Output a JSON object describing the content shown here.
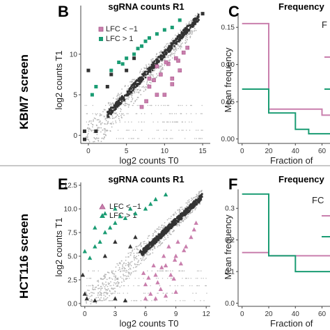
{
  "colors": {
    "pink": "#c97fad",
    "pink_dark": "#a9578b",
    "green": "#1a9c73",
    "dark": "#333333",
    "gray": "#b5b5b5",
    "divider": "#c8c8c8"
  },
  "rows": [
    {
      "label": "KBM7 screen"
    },
    {
      "label": "HCT116 screen"
    }
  ],
  "chart_data": [
    {
      "panel": "B",
      "type": "scatter",
      "title": "sgRNA counts R1",
      "xlabel": "log2 counts T0",
      "ylabel": "log2 counts T1",
      "xlim": [
        -1,
        16
      ],
      "ylim": [
        -1,
        16
      ],
      "xticks": [
        0,
        5,
        10,
        15
      ],
      "yticks": [
        0,
        5,
        10
      ],
      "legend": {
        "position": "top-left",
        "marker": "square",
        "entries": [
          {
            "label": "LFC < −1",
            "color": "pink"
          },
          {
            "label": "LFC > 1",
            "color": "green"
          }
        ]
      },
      "diag_band": {
        "x0": 2.5,
        "x1": 14.5,
        "y0": 2.5,
        "y1": 14.6
      },
      "series": [
        {
          "name": "LFC < −1",
          "color": "pink",
          "marker": "square",
          "points": [
            [
              12,
              8
            ],
            [
              11,
              6.3
            ],
            [
              10,
              5
            ],
            [
              9,
              5
            ],
            [
              8,
              6
            ],
            [
              7,
              3.5
            ],
            [
              8,
              7
            ],
            [
              11,
              7
            ],
            [
              9.5,
              7.5
            ],
            [
              10.5,
              8.8
            ],
            [
              11.5,
              9.5
            ],
            [
              12.5,
              10.2
            ],
            [
              13,
              10.8
            ],
            [
              9,
              8.5
            ],
            [
              10.2,
              9
            ],
            [
              11.8,
              9.2
            ],
            [
              8.6,
              6.8
            ],
            [
              7.6,
              4.2
            ]
          ]
        },
        {
          "name": "LFC > 1",
          "color": "green",
          "marker": "square",
          "points": [
            [
              0.5,
              5
            ],
            [
              1,
              6
            ],
            [
              4,
              9
            ],
            [
              5,
              9.5
            ],
            [
              6,
              10
            ],
            [
              7,
              11
            ],
            [
              8,
              12
            ],
            [
              10,
              13
            ],
            [
              9,
              12.5
            ],
            [
              3,
              8
            ],
            [
              11,
              13.3
            ],
            [
              12,
              14.2
            ],
            [
              6.5,
              10.7
            ],
            [
              7.5,
              11.6
            ],
            [
              4.5,
              8.8
            ]
          ]
        },
        {
          "name": "",
          "color": "dark",
          "marker": "square",
          "points": [
            [
              15,
              15
            ],
            [
              -0.5,
              0.5
            ],
            [
              -0.5,
              -0.5
            ],
            [
              0,
              8
            ],
            [
              1,
              0.5
            ],
            [
              6,
              9.5
            ],
            [
              5,
              8
            ],
            [
              3,
              7.5
            ],
            [
              2.5,
              6
            ]
          ]
        }
      ]
    },
    {
      "panel": "C",
      "type": "line",
      "title": "Frequency",
      "xlabel": "Fraction of",
      "ylabel": "Mean frequency",
      "xlim": [
        -3,
        66
      ],
      "ylim": [
        -0.006,
        0.168
      ],
      "xticks": [
        0,
        20,
        40,
        60
      ],
      "xtick_labels": [
        "0",
        "20",
        "40",
        "60"
      ],
      "yticks": [
        0.0,
        0.05,
        0.1,
        0.15
      ],
      "ytick_labels": [
        "0.00",
        "0.05",
        "0.10",
        "0.15"
      ],
      "legend_fragment": "F",
      "series": [
        {
          "name": "",
          "color": "pink",
          "step": true,
          "points": [
            [
              0,
              0.155
            ],
            [
              20,
              0.155
            ],
            [
              20,
              0.04
            ],
            [
              60,
              0.04
            ],
            [
              60,
              0.032
            ],
            [
              66,
              0.032
            ]
          ]
        },
        {
          "name": "",
          "color": "green",
          "step": true,
          "points": [
            [
              0,
              0.067
            ],
            [
              20,
              0.067
            ],
            [
              20,
              0.035
            ],
            [
              40,
              0.035
            ],
            [
              40,
              0.013
            ],
            [
              50,
              0.013
            ],
            [
              50,
              0.007
            ],
            [
              66,
              0.007
            ]
          ]
        }
      ]
    },
    {
      "panel": "E",
      "type": "scatter",
      "title": "sgRNA counts R1",
      "xlabel": "log2 counts T0",
      "ylabel": "log2 counts T1",
      "xlim": [
        -0.4,
        12.4
      ],
      "ylim": [
        -0.3,
        12.8
      ],
      "xticks": [
        0,
        3,
        6,
        9,
        12
      ],
      "yticks": [
        0.0,
        2.5,
        5.0,
        7.5,
        10.0,
        12.5
      ],
      "ytick_labels": [
        "0.0",
        "2.5",
        "5.0",
        "7.5",
        "10.0",
        "12.5"
      ],
      "legend": {
        "position": "top-left",
        "marker": "triangle",
        "entries": [
          {
            "label": "LFC < −1",
            "color": "pink"
          },
          {
            "label": "LFC > 1",
            "color": "green"
          }
        ]
      },
      "diag_band": {
        "x0": 5.6,
        "x1": 11.6,
        "y0": 5.3,
        "y1": 11.3
      },
      "series": [
        {
          "name": "LFC < −1",
          "color": "pink",
          "marker": "triangle",
          "points": [
            [
              6,
              2
            ],
            [
              7,
              3
            ],
            [
              8,
              4
            ],
            [
              9,
              5
            ],
            [
              10,
              6
            ],
            [
              6.5,
              1
            ],
            [
              7.5,
              1.5
            ],
            [
              8.5,
              3
            ],
            [
              9.5,
              4.2
            ],
            [
              10.5,
              7
            ],
            [
              6,
              0.5
            ],
            [
              7,
              0.5
            ],
            [
              8,
              0.8
            ],
            [
              9,
              1.2
            ],
            [
              7.2,
              2.2
            ],
            [
              8.8,
              2.6
            ],
            [
              9.8,
              5.6
            ],
            [
              10.8,
              7.8
            ],
            [
              6.8,
              4
            ],
            [
              7.8,
              5
            ],
            [
              8.3,
              6
            ],
            [
              9.2,
              6.5
            ],
            [
              5.8,
              3.2
            ],
            [
              6.3,
              2.7
            ],
            [
              11,
              8.5
            ],
            [
              7.6,
              3.8
            ],
            [
              8.9,
              4.6
            ]
          ]
        },
        {
          "name": "LFC > 1",
          "color": "green",
          "marker": "triangle",
          "points": [
            [
              0,
              5.5
            ],
            [
              1,
              6
            ],
            [
              2,
              7.5
            ],
            [
              3,
              8.5
            ],
            [
              4,
              9
            ],
            [
              5,
              9.5
            ],
            [
              2.5,
              8
            ],
            [
              1.5,
              6.5
            ],
            [
              3.5,
              9.2
            ],
            [
              4.5,
              10
            ],
            [
              0.5,
              4.8
            ],
            [
              2,
              9.5
            ],
            [
              6,
              10
            ],
            [
              6.5,
              10.5
            ],
            [
              7,
              11
            ],
            [
              8,
              11.5
            ],
            [
              3,
              10
            ],
            [
              1,
              8
            ]
          ]
        },
        {
          "name": "",
          "color": "dark",
          "marker": "triangle",
          "points": [
            [
              -0.2,
              3
            ],
            [
              0,
              1
            ],
            [
              0.2,
              0.5
            ],
            [
              1,
              0.3
            ],
            [
              3,
              0.5
            ],
            [
              4,
              0.3
            ],
            [
              2,
              5
            ],
            [
              3,
              6.5
            ],
            [
              4.5,
              6
            ],
            [
              5.5,
              5.5
            ],
            [
              5,
              7
            ]
          ]
        }
      ]
    },
    {
      "panel": "F",
      "type": "line",
      "title": "Frequency",
      "xlabel": "Fraction of",
      "ylabel": "Mean frequency",
      "xlim": [
        -3,
        66
      ],
      "ylim": [
        -0.01,
        0.36
      ],
      "xticks": [
        0,
        20,
        40,
        60
      ],
      "xtick_labels": [
        "0",
        "20",
        "40",
        "60"
      ],
      "yticks": [
        0.0,
        0.1,
        0.2,
        0.3
      ],
      "ytick_labels": [
        "0.0",
        "0.1",
        "0.2",
        "0.3"
      ],
      "legend_fragment": "FC",
      "series": [
        {
          "name": "",
          "color": "pink",
          "step": true,
          "points": [
            [
              0,
              0.16
            ],
            [
              20,
              0.16
            ],
            [
              20,
              0.15
            ],
            [
              66,
              0.15
            ]
          ]
        },
        {
          "name": "",
          "color": "green",
          "step": true,
          "points": [
            [
              0,
              0.345
            ],
            [
              20,
              0.345
            ],
            [
              20,
              0.15
            ],
            [
              40,
              0.15
            ],
            [
              40,
              0.1
            ],
            [
              66,
              0.1
            ]
          ]
        }
      ]
    }
  ]
}
